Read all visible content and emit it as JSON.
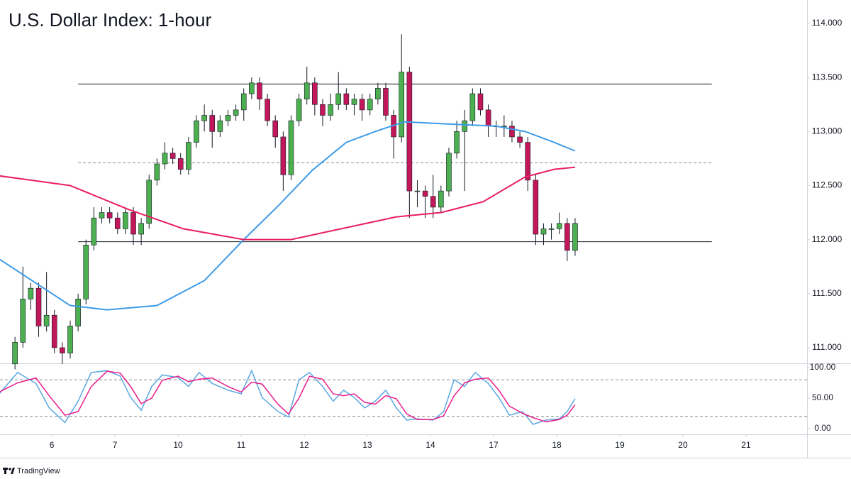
{
  "chart_data": [
    {
      "type": "candlestick",
      "title": "U.S. Dollar Index: 1-hour",
      "xlim": [
        -19.7,
        287.2
      ],
      "ylim": [
        110.855,
        114.217
      ],
      "xticks": [
        {
          "value": 0,
          "label": "6"
        },
        {
          "value": 24,
          "label": "7"
        },
        {
          "value": 48,
          "label": "10"
        },
        {
          "value": 72,
          "label": "11"
        },
        {
          "value": 96,
          "label": "12"
        },
        {
          "value": 120,
          "label": "13"
        },
        {
          "value": 144,
          "label": "14"
        },
        {
          "value": 168,
          "label": "17"
        },
        {
          "value": 192,
          "label": "18"
        },
        {
          "value": 216,
          "label": "19"
        },
        {
          "value": 240,
          "label": "20"
        },
        {
          "value": 264,
          "label": "21"
        }
      ],
      "yticks": [
        {
          "value": 111,
          "label": "111.000"
        },
        {
          "value": 111.5,
          "label": "111.500"
        },
        {
          "value": 112,
          "label": "112.000"
        },
        {
          "value": 112.5,
          "label": "112.500"
        },
        {
          "value": 113,
          "label": "113.000"
        },
        {
          "value": 113.5,
          "label": "113.500"
        },
        {
          "value": 114,
          "label": "114.000"
        }
      ],
      "up_color": "#4caf50",
      "down_color": "#c2185b",
      "x": [
        -14,
        -11,
        -8,
        -5,
        -2,
        1,
        4,
        7,
        10,
        13,
        16,
        19,
        22,
        25,
        28,
        31,
        34,
        37,
        40,
        43,
        46,
        49,
        52,
        55,
        58,
        61,
        64,
        67,
        70,
        73,
        76,
        79,
        82,
        85,
        88,
        91,
        94,
        97,
        100,
        103,
        106,
        109,
        112,
        115,
        118,
        121,
        124,
        127,
        130,
        133,
        136,
        139,
        142,
        145,
        148,
        151,
        154,
        157,
        160,
        163,
        166,
        169,
        172,
        175,
        178,
        181,
        184,
        187,
        190,
        193,
        196,
        199
      ],
      "open": [
        110.85,
        111.05,
        111.45,
        111.55,
        111.2,
        111.3,
        111.0,
        110.95,
        111.2,
        111.45,
        111.95,
        112.2,
        112.25,
        112.2,
        112.1,
        112.25,
        112.05,
        112.15,
        112.55,
        112.7,
        112.8,
        112.75,
        112.65,
        112.9,
        113.1,
        113.15,
        113.0,
        113.1,
        113.15,
        113.2,
        113.35,
        113.45,
        113.3,
        113.1,
        112.95,
        112.6,
        113.1,
        113.3,
        113.45,
        113.25,
        113.15,
        113.25,
        113.35,
        113.25,
        113.3,
        113.2,
        113.3,
        113.4,
        113.15,
        112.95,
        113.55,
        112.45,
        112.45,
        112.4,
        112.3,
        112.45,
        112.8,
        113.0,
        113.1,
        113.35,
        113.2,
        113.05,
        113.05,
        113.05,
        112.95,
        112.9,
        112.55,
        112.05,
        112.1,
        112.1,
        112.15,
        111.9
      ],
      "high": [
        111.1,
        111.75,
        111.6,
        111.6,
        111.7,
        111.35,
        111.05,
        111.25,
        111.5,
        112.0,
        112.3,
        112.3,
        112.3,
        112.25,
        112.3,
        112.3,
        112.2,
        112.6,
        112.75,
        112.9,
        112.85,
        112.8,
        112.95,
        113.15,
        113.25,
        113.2,
        113.15,
        113.2,
        113.25,
        113.4,
        113.5,
        113.5,
        113.35,
        113.15,
        113.0,
        113.15,
        113.35,
        113.6,
        113.5,
        113.3,
        113.35,
        113.55,
        113.4,
        113.35,
        113.35,
        113.35,
        113.45,
        113.45,
        113.2,
        113.9,
        113.6,
        112.55,
        112.5,
        112.6,
        112.5,
        112.85,
        113.1,
        113.2,
        113.4,
        113.4,
        113.25,
        113.1,
        113.15,
        113.1,
        113.0,
        112.95,
        112.6,
        112.15,
        112.15,
        112.25,
        112.2,
        112.2
      ],
      "low": [
        110.8,
        111.0,
        111.35,
        111.1,
        111.15,
        110.95,
        110.85,
        110.9,
        111.15,
        111.4,
        111.9,
        112.15,
        112.15,
        112.05,
        112.05,
        111.95,
        111.95,
        112.1,
        112.5,
        112.65,
        112.7,
        112.6,
        112.6,
        112.85,
        113.0,
        112.85,
        112.95,
        113.05,
        113.1,
        113.1,
        113.3,
        113.2,
        113.05,
        112.85,
        112.45,
        112.55,
        113.05,
        113.25,
        113.15,
        113.05,
        113.1,
        113.2,
        113.2,
        113.15,
        113.1,
        113.15,
        113.25,
        113.1,
        112.75,
        112.9,
        112.2,
        112.3,
        112.2,
        112.2,
        112.25,
        112.4,
        112.75,
        112.45,
        113.05,
        113.15,
        112.95,
        112.95,
        112.95,
        112.9,
        112.85,
        112.45,
        111.95,
        111.95,
        112.0,
        112.05,
        111.8,
        111.85
      ],
      "close": [
        111.05,
        111.45,
        111.55,
        111.2,
        111.3,
        111.0,
        110.95,
        111.2,
        111.45,
        111.95,
        112.2,
        112.25,
        112.2,
        112.1,
        112.25,
        112.05,
        112.15,
        112.55,
        112.7,
        112.8,
        112.75,
        112.65,
        112.9,
        113.1,
        113.15,
        113.0,
        113.1,
        113.15,
        113.2,
        113.35,
        113.45,
        113.3,
        113.1,
        112.95,
        112.6,
        113.1,
        113.3,
        113.45,
        113.25,
        113.15,
        113.25,
        113.35,
        113.25,
        113.3,
        113.2,
        113.3,
        113.4,
        113.15,
        112.95,
        113.55,
        112.45,
        112.45,
        112.4,
        112.3,
        112.45,
        112.8,
        113.0,
        113.1,
        113.35,
        113.2,
        113.05,
        113.05,
        113.05,
        112.95,
        112.9,
        112.55,
        112.05,
        112.1,
        112.1,
        112.15,
        111.9,
        112.15
      ],
      "lines": [
        {
          "color": "#3d9be9",
          "x": [
            -20,
            7,
            21,
            40,
            58,
            73,
            86,
            99,
            112,
            123,
            134,
            150,
            169,
            180,
            191,
            199
          ],
          "values": [
            111.82,
            111.39,
            111.35,
            111.39,
            111.62,
            112.0,
            112.31,
            112.64,
            112.9,
            113.0,
            113.09,
            113.07,
            113.05,
            113.0,
            112.9,
            112.82
          ]
        },
        {
          "color": "#e91e63",
          "x": [
            -20,
            7,
            29,
            50,
            73,
            91,
            110,
            131,
            148,
            164,
            180,
            191,
            199
          ],
          "values": [
            112.59,
            112.5,
            112.28,
            112.1,
            112.0,
            112.0,
            112.1,
            112.21,
            112.25,
            112.35,
            112.58,
            112.65,
            112.67
          ]
        }
      ],
      "level_x_range": [
        10,
        251
      ],
      "levels": [
        {
          "value": 113.44,
          "style": "solid"
        },
        {
          "value": 112.71,
          "style": "dashed"
        },
        {
          "value": 111.98,
          "style": "solid"
        }
      ]
    },
    {
      "type": "line",
      "ylim": [
        -9.3,
        107
      ],
      "yticks": [
        {
          "value": 0,
          "label": "0.00"
        },
        {
          "value": 50,
          "label": "50.00"
        },
        {
          "value": 100,
          "label": "100.00"
        }
      ],
      "levels": [
        20,
        80
      ],
      "x": [
        -20,
        -13,
        -6,
        -1,
        5,
        10,
        15,
        21,
        26,
        30,
        34,
        38,
        42,
        48,
        52,
        56,
        61,
        67,
        72,
        76,
        80,
        86,
        90,
        94,
        98,
        103,
        107,
        111,
        115,
        119,
        123,
        127,
        131,
        135,
        139,
        145,
        149,
        153,
        157,
        161,
        166,
        170,
        174,
        179,
        183,
        188,
        193,
        196,
        199
      ],
      "series": [
        {
          "color": "#5aa7e0",
          "values": [
            57,
            92,
            74,
            34,
            10,
            45,
            92,
            95,
            86,
            51,
            30,
            69,
            88,
            84,
            69,
            92,
            74,
            63,
            57,
            95,
            51,
            28,
            19,
            80,
            92,
            69,
            45,
            63,
            51,
            34,
            45,
            63,
            34,
            14,
            16,
            14,
            28,
            80,
            69,
            92,
            74,
            51,
            22,
            28,
            7,
            14,
            16,
            28,
            49
          ]
        },
        {
          "color": "#e91e8c",
          "values": [
            60,
            75,
            83,
            54,
            22,
            28,
            69,
            94,
            91,
            69,
            41,
            50,
            79,
            86,
            77,
            81,
            83,
            69,
            60,
            76,
            73,
            40,
            24,
            50,
            86,
            81,
            57,
            54,
            57,
            43,
            40,
            54,
            49,
            24,
            15,
            15,
            21,
            54,
            75,
            81,
            83,
            63,
            37,
            25,
            18,
            11,
            15,
            22,
            39
          ]
        }
      ]
    }
  ],
  "footer": {
    "brand": "TradingView"
  }
}
